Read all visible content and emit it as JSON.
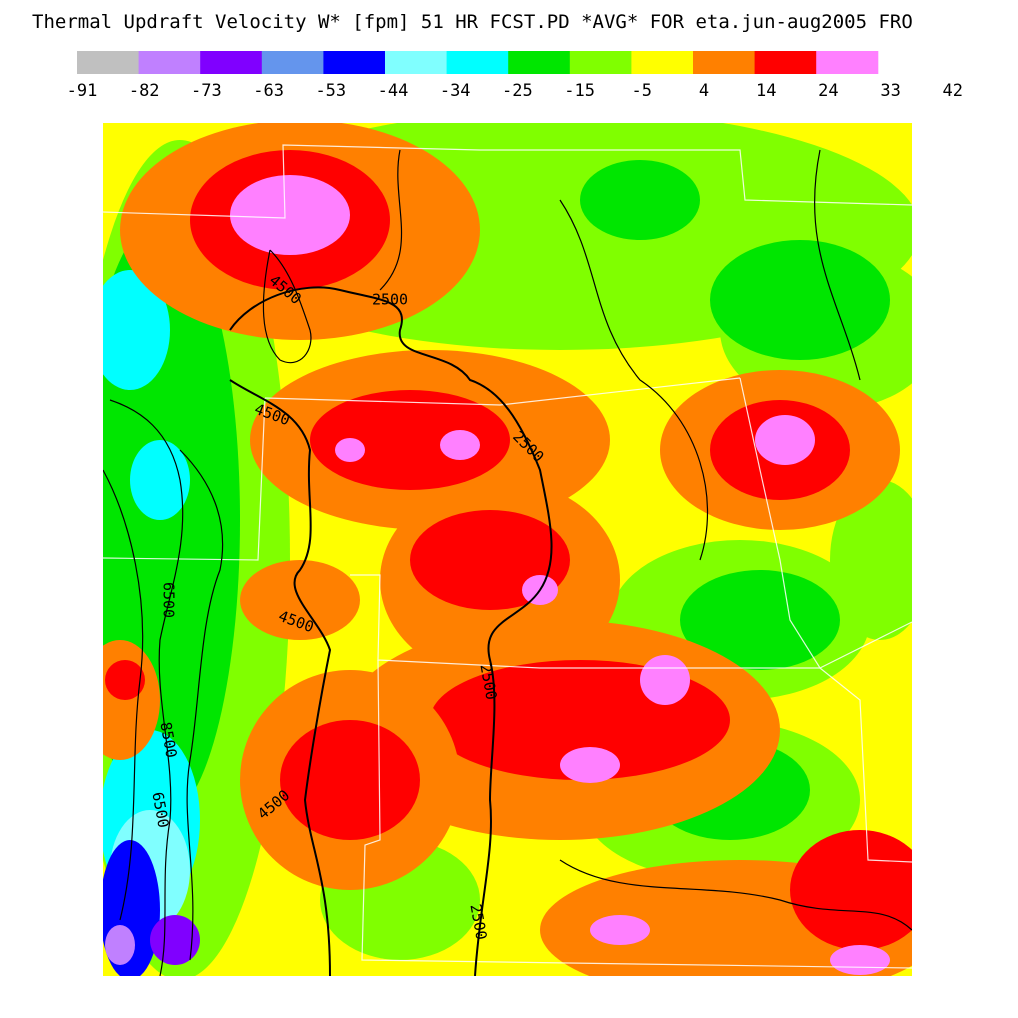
{
  "title": "Thermal Updraft Velocity W* [fpm] 51 HR FCST.PD  *AVG*  FOR eta.jun-aug2005  FRO",
  "legend": {
    "colors": [
      "#c0c0c0",
      "#c080ff",
      "#8000ff",
      "#6495ed",
      "#0000ff",
      "#80ffff",
      "#00ffff",
      "#00e600",
      "#80ff00",
      "#ffff00",
      "#ff8000",
      "#ff0000",
      "#ff80ff"
    ],
    "labels": [
      -91,
      -82,
      -73,
      -63,
      -53,
      -44,
      -34,
      -25,
      -15,
      -5,
      4,
      14,
      24,
      33,
      42
    ]
  },
  "contour_labels": [
    "4500",
    "2500",
    "4500",
    "2500",
    "6500",
    "4500",
    "2500",
    "8500",
    "6500",
    "4500",
    "2500"
  ]
}
